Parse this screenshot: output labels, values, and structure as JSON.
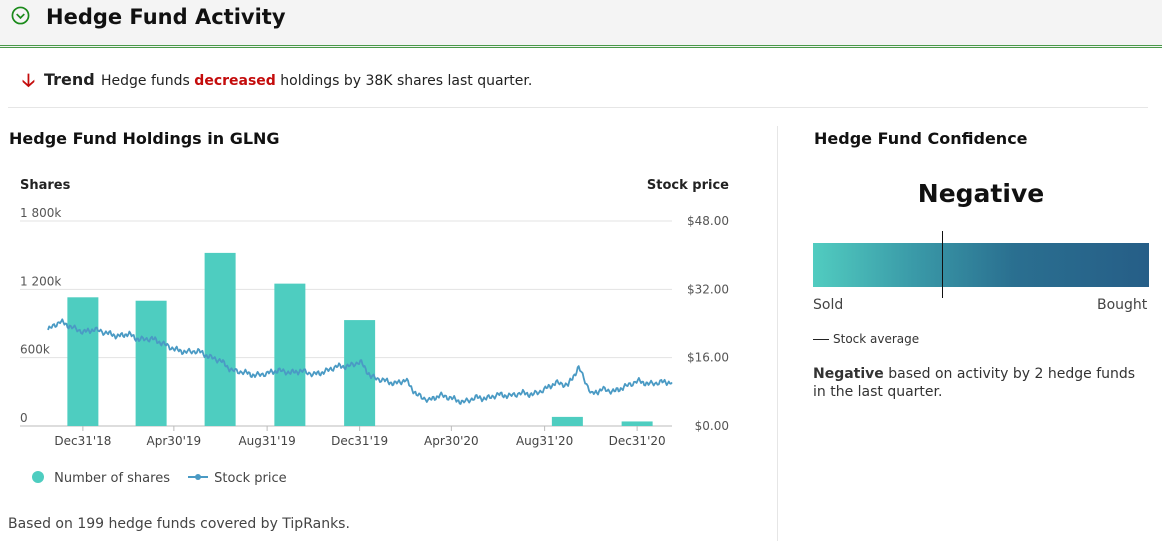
{
  "header": {
    "title": "Hedge Fund Activity",
    "icon": "chevron-down-circle-icon",
    "accent": "#1a8a1a"
  },
  "trend": {
    "icon": "arrow-down-icon",
    "label": "Trend",
    "text_before": "Hedge funds ",
    "highlight": "decreased",
    "text_after": " holdings by 38K shares last quarter.",
    "highlight_color": "#c40c0c"
  },
  "holdings": {
    "title": "Hedge Fund Holdings in GLNG"
  },
  "chart_data": {
    "type": "bar",
    "left_axis_label": "Shares",
    "right_axis_label": "Stock price",
    "left_ticks": [
      "1 800k",
      "1 200k",
      "600k",
      "0"
    ],
    "left_tick_values": [
      1800000,
      1200000,
      600000,
      0
    ],
    "right_ticks": [
      "$48.00",
      "$32.00",
      "$16.00",
      "$0.00"
    ],
    "right_tick_values": [
      48,
      32,
      16,
      0
    ],
    "ylim_shares": [
      0,
      1800000
    ],
    "ylim_price": [
      0,
      48
    ],
    "x_ticks": [
      "Dec31'18",
      "Apr30'19",
      "Aug31'19",
      "Dec31'19",
      "Apr30'20",
      "Aug31'20",
      "Dec31'20"
    ],
    "x_tick_dates": [
      "2018-12-31",
      "2019-04-30",
      "2019-08-31",
      "2019-12-31",
      "2020-04-30",
      "2020-08-31",
      "2020-12-31"
    ],
    "x_range": [
      "2018-11-15",
      "2021-02-15"
    ],
    "bar_color": "#4ecdc0",
    "line_color": "#4a9ac4",
    "series": [
      {
        "name": "Number of shares",
        "kind": "bar",
        "dates": [
          "2018-12-31",
          "2019-03-31",
          "2019-06-30",
          "2019-09-30",
          "2019-12-31",
          "2020-03-31",
          "2020-06-30",
          "2020-09-30",
          "2020-12-31"
        ],
        "values": [
          1130000,
          1100000,
          1520000,
          1250000,
          930000,
          0,
          0,
          80000,
          40000
        ]
      },
      {
        "name": "Stock price",
        "kind": "line",
        "dates": [
          "2018-11-15",
          "2018-12-01",
          "2018-12-15",
          "2019-01-01",
          "2019-01-15",
          "2019-02-01",
          "2019-02-15",
          "2019-03-01",
          "2019-03-15",
          "2019-04-01",
          "2019-04-15",
          "2019-05-01",
          "2019-05-15",
          "2019-06-01",
          "2019-06-15",
          "2019-07-01",
          "2019-07-15",
          "2019-08-01",
          "2019-08-15",
          "2019-09-01",
          "2019-09-15",
          "2019-10-01",
          "2019-10-15",
          "2019-11-01",
          "2019-11-15",
          "2019-12-01",
          "2019-12-15",
          "2020-01-01",
          "2020-01-15",
          "2020-02-01",
          "2020-02-15",
          "2020-03-01",
          "2020-03-15",
          "2020-04-01",
          "2020-04-15",
          "2020-05-01",
          "2020-05-15",
          "2020-06-01",
          "2020-06-15",
          "2020-07-01",
          "2020-07-15",
          "2020-08-01",
          "2020-08-15",
          "2020-09-01",
          "2020-09-15",
          "2020-10-01",
          "2020-10-15",
          "2020-11-01",
          "2020-11-15",
          "2020-12-01",
          "2020-12-15",
          "2021-01-01",
          "2021-01-15",
          "2021-02-01",
          "2021-02-15"
        ],
        "values": [
          22.5,
          24.5,
          23.2,
          22.0,
          22.6,
          21.8,
          21.0,
          21.6,
          20.2,
          20.5,
          19.3,
          18.0,
          17.3,
          17.6,
          16.2,
          15.3,
          13.0,
          12.6,
          11.8,
          12.4,
          13.0,
          12.5,
          12.9,
          12.1,
          12.7,
          14.0,
          13.9,
          15.1,
          11.5,
          10.7,
          9.9,
          10.8,
          7.3,
          6.0,
          7.2,
          6.5,
          5.5,
          6.7,
          6.4,
          7.4,
          7.0,
          7.8,
          7.3,
          8.7,
          10.1,
          9.6,
          13.7,
          7.4,
          8.6,
          8.1,
          9.2,
          10.6,
          9.8,
          10.3,
          10.2
        ]
      }
    ]
  },
  "legend": {
    "shares_label": "Number of shares",
    "price_label": "Stock price"
  },
  "footer": "Based on 199 hedge funds covered by TipRanks.",
  "confidence": {
    "title": "Hedge Fund Confidence",
    "value": "Negative",
    "left_label": "Sold",
    "right_label": "Bought",
    "stock_average_label": "Stock average",
    "marker_fraction": 0.385,
    "desc_bold": "Negative",
    "desc_rest": " based on activity by 2 hedge funds in the last quarter.",
    "gradient_colors": [
      "#51ccc0",
      "#265e87"
    ]
  }
}
